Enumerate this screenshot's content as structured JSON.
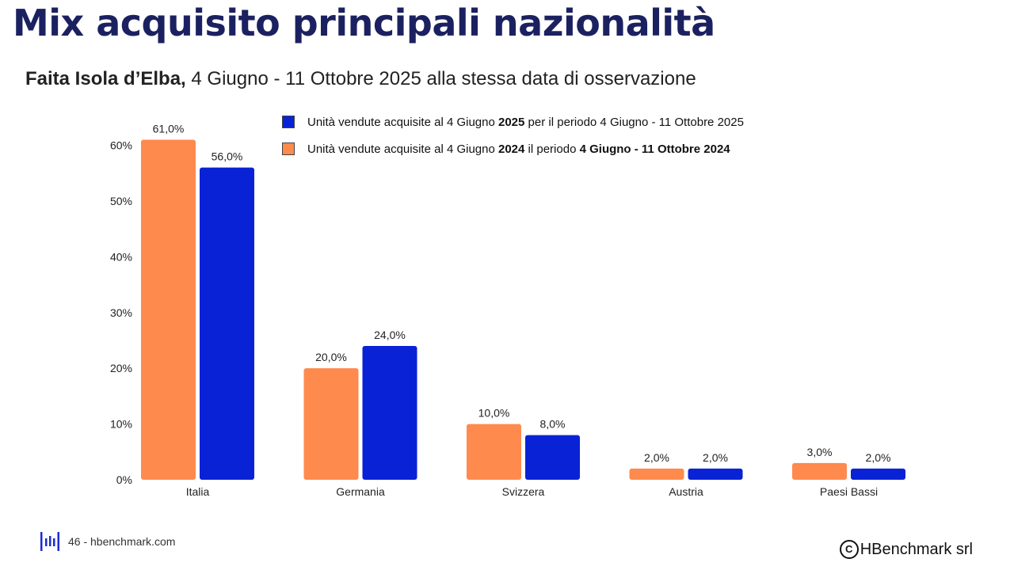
{
  "page": {
    "title": "Mix acquisito principali nazionalità",
    "subtitle_bold": "Faita Isola d’Elba,",
    "subtitle_rest": " 4 Giugno - 11 Ottobre 2025 alla stessa data di osservazione"
  },
  "legend": {
    "item1": {
      "pre": "Unità vendute acquisite al 4 Giugno ",
      "bold": "2025",
      "post": " per il periodo 4 Giugno - 11 Ottobre 2025"
    },
    "item2": {
      "pre": "Unità vendute acquisite al 4 Giugno ",
      "bold1": "2024",
      "mid": " il periodo ",
      "bold2": "4 Giugno - 11 Ottobre 2024"
    }
  },
  "footer": {
    "page_text": "46 - hbenchmark.com",
    "copyright_icon": "C",
    "copyright": "HBenchmark srl"
  },
  "colors": {
    "series_2024": "#fe8a4e",
    "series_2025": "#0a22d6",
    "title": "#1b2160",
    "axis_text": "#222222"
  },
  "chart_data": {
    "type": "bar",
    "categories": [
      "Italia",
      "Germania",
      "Svizzera",
      "Austria",
      "Paesi Bassi"
    ],
    "series": [
      {
        "key": "2024",
        "values": [
          61.0,
          20.0,
          10.0,
          2.0,
          3.0
        ],
        "labels": [
          "61,0%",
          "20,0%",
          "10,0%",
          "2,0%",
          "3,0%"
        ]
      },
      {
        "key": "2025",
        "values": [
          56.0,
          24.0,
          8.0,
          2.0,
          2.0
        ],
        "labels": [
          "56,0%",
          "24,0%",
          "8,0%",
          "2,0%",
          "2,0%"
        ]
      }
    ],
    "ylim": [
      0,
      60
    ],
    "yticks": [
      0,
      10,
      20,
      30,
      40,
      50,
      60
    ],
    "ytick_labels": [
      "0%",
      "10%",
      "20%",
      "30%",
      "40%",
      "50%",
      "60%"
    ],
    "grid": false,
    "legend_position": "top-right"
  }
}
